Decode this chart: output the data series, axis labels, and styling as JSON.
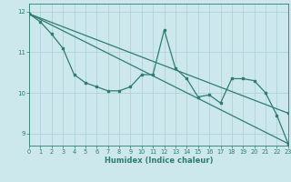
{
  "x": [
    0,
    1,
    2,
    3,
    4,
    5,
    6,
    7,
    8,
    9,
    10,
    11,
    12,
    13,
    14,
    15,
    16,
    17,
    18,
    19,
    20,
    21,
    22,
    23
  ],
  "line1": [
    11.95,
    11.75,
    11.45,
    11.1,
    10.45,
    10.25,
    10.15,
    10.05,
    10.05,
    10.15,
    10.45,
    10.45,
    11.55,
    10.6,
    10.35,
    9.9,
    9.95,
    9.75,
    10.35,
    10.35,
    10.3,
    10.0,
    9.45,
    8.75
  ],
  "line2_x": [
    0,
    23
  ],
  "line2_y": [
    11.95,
    8.75
  ],
  "line3_x": [
    0,
    23
  ],
  "line3_y": [
    11.95,
    9.5
  ],
  "xlabel": "Humidex (Indice chaleur)",
  "yticks": [
    9,
    10,
    11,
    12
  ],
  "xticks": [
    0,
    1,
    2,
    3,
    4,
    5,
    6,
    7,
    8,
    9,
    10,
    11,
    12,
    13,
    14,
    15,
    16,
    17,
    18,
    19,
    20,
    21,
    22,
    23
  ],
  "xlim": [
    0,
    23
  ],
  "ylim": [
    8.7,
    12.2
  ],
  "line_color": "#2e7d6e",
  "bg_color": "#cce8ec",
  "grid_color": "#aacdd4"
}
